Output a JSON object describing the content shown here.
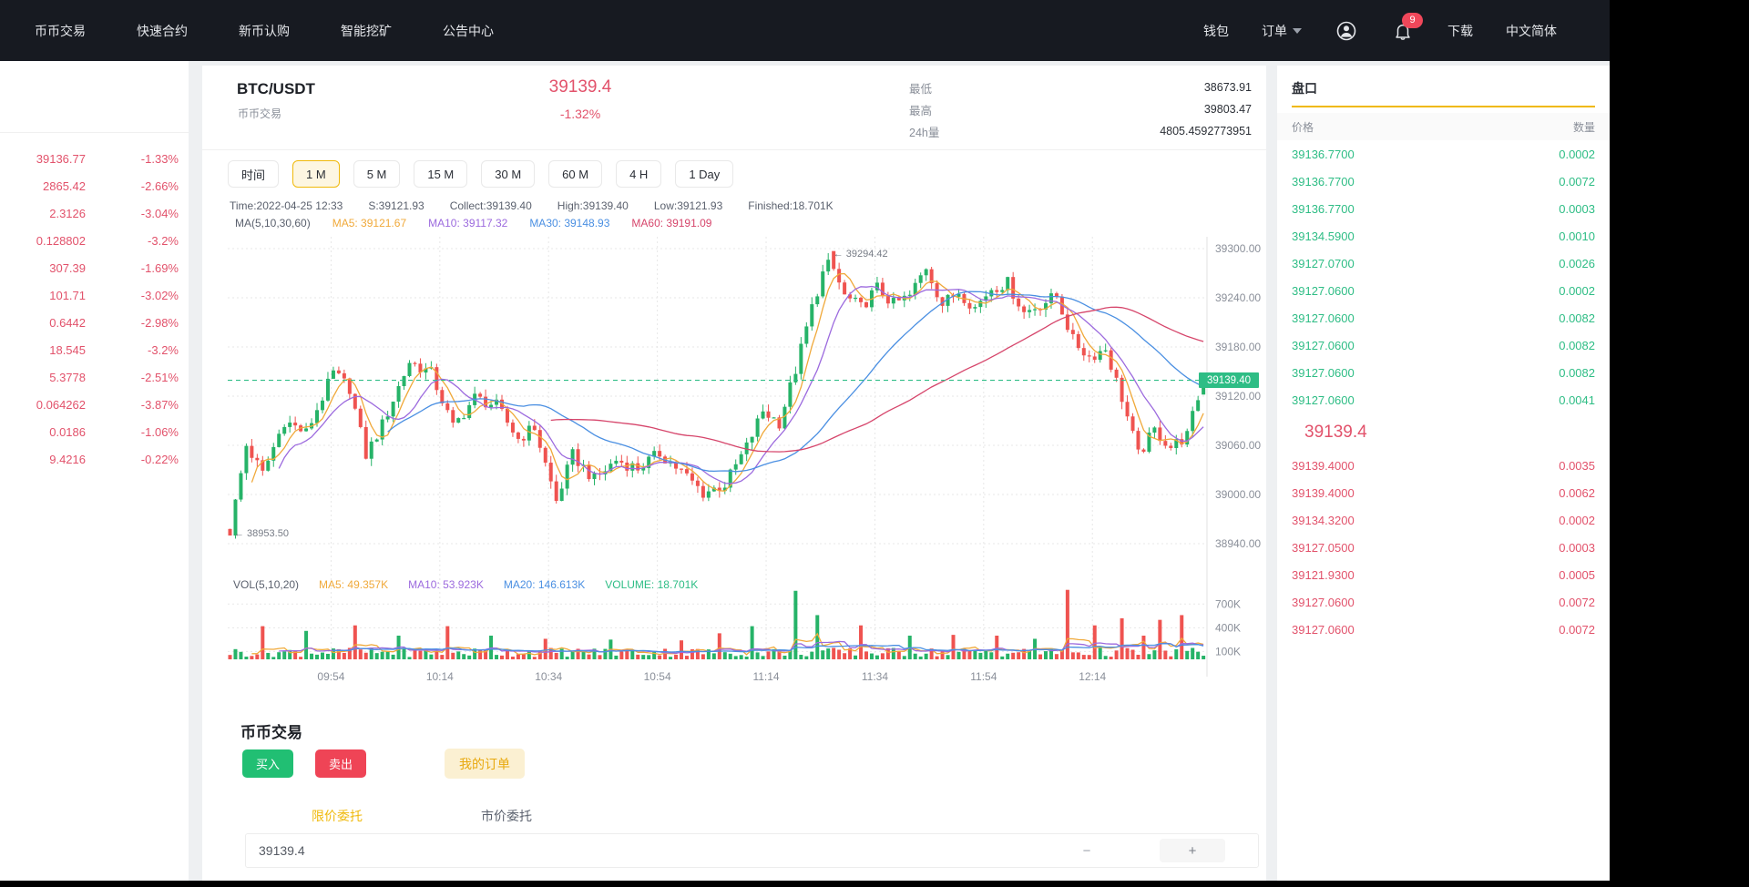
{
  "nav": {
    "items": [
      "币币交易",
      "快速合约",
      "新币认购",
      "智能挖矿",
      "公告中心"
    ],
    "right": {
      "wallet": "钱包",
      "orders": "订单",
      "download": "下载",
      "lang": "中文简体",
      "badge": "9"
    }
  },
  "watchlist": {
    "rows": [
      {
        "price": "39136.77",
        "change": "-1.33%"
      },
      {
        "price": "2865.42",
        "change": "-2.66%"
      },
      {
        "price": "2.3126",
        "change": "-3.04%"
      },
      {
        "price": "0.128802",
        "change": "-3.2%"
      },
      {
        "price": "307.39",
        "change": "-1.69%"
      },
      {
        "price": "101.71",
        "change": "-3.02%"
      },
      {
        "price": "0.6442",
        "change": "-2.98%"
      },
      {
        "price": "18.545",
        "change": "-3.2%"
      },
      {
        "price": "5.3778",
        "change": "-2.51%"
      },
      {
        "price": "0.064262",
        "change": "-3.87%"
      },
      {
        "price": "0.0186",
        "change": "-1.06%"
      },
      {
        "price": "9.4216",
        "change": "-0.22%"
      }
    ]
  },
  "header": {
    "symbol": "BTC/USDT",
    "subtitle": "币币交易",
    "price": "39139.4",
    "change": "-1.32%",
    "stats": [
      {
        "label": "最低",
        "value": "38673.91"
      },
      {
        "label": "最高",
        "value": "39803.47"
      },
      {
        "label": "24h量",
        "value": "4805.4592773951"
      }
    ]
  },
  "toolbar": {
    "label": "时间",
    "buttons": [
      "1 M",
      "5 M",
      "15 M",
      "30 M",
      "60 M",
      "4 H",
      "1 Day"
    ],
    "active": "1 M"
  },
  "chart_info": {
    "segments": [
      "Time:2022-04-25 12:33",
      "S:39121.93",
      "Collect:39139.40",
      "High:39139.40",
      "Low:39121.93",
      "Finished:18.701K"
    ],
    "ma_items": [
      {
        "label": "MA(5,10,30,60)",
        "color": "#5b616e"
      },
      {
        "label": "MA5: 39121.67",
        "color": "#f0a93a"
      },
      {
        "label": "MA10: 39117.32",
        "color": "#9c6ade"
      },
      {
        "label": "MA30: 39148.93",
        "color": "#4a8fe2"
      },
      {
        "label": "MA60: 39191.09",
        "color": "#d6456b"
      }
    ],
    "vol_items": [
      {
        "label": "VOL(5,10,20)",
        "color": "#5b616e"
      },
      {
        "label": "MA5: 49.357K",
        "color": "#f0a93a"
      },
      {
        "label": "MA10: 53.923K",
        "color": "#9c6ade"
      },
      {
        "label": "MA20: 146.613K",
        "color": "#4a8fe2"
      },
      {
        "label": "VOLUME: 18.701K",
        "color": "#2ebd85"
      }
    ]
  },
  "chart_data": {
    "type": "candlestick+volume",
    "symbol": "BTC/USDT",
    "interval": "1 M",
    "count": 180,
    "step": 5.97,
    "first_open": 38958,
    "price_anchors": [
      [
        0,
        38955
      ],
      [
        3,
        39060
      ],
      [
        6,
        39025
      ],
      [
        10,
        39090
      ],
      [
        14,
        39075
      ],
      [
        19,
        39148
      ],
      [
        22,
        39130
      ],
      [
        25,
        39048
      ],
      [
        28,
        39085
      ],
      [
        33,
        39162
      ],
      [
        37,
        39148
      ],
      [
        41,
        39082
      ],
      [
        45,
        39118
      ],
      [
        49,
        39108
      ],
      [
        53,
        39068
      ],
      [
        56,
        39082
      ],
      [
        60,
        38992
      ],
      [
        63,
        39048
      ],
      [
        67,
        39018
      ],
      [
        71,
        39042
      ],
      [
        75,
        39032
      ],
      [
        79,
        39050
      ],
      [
        83,
        39028
      ],
      [
        87,
        39002
      ],
      [
        91,
        39012
      ],
      [
        95,
        39058
      ],
      [
        98,
        39102
      ],
      [
        101,
        39088
      ],
      [
        104,
        39152
      ],
      [
        107,
        39228
      ],
      [
        110,
        39290
      ],
      [
        113,
        39242
      ],
      [
        116,
        39228
      ],
      [
        119,
        39252
      ],
      [
        122,
        39232
      ],
      [
        125,
        39242
      ],
      [
        128,
        39278
      ],
      [
        131,
        39232
      ],
      [
        134,
        39248
      ],
      [
        137,
        39228
      ],
      [
        140,
        39252
      ],
      [
        143,
        39258
      ],
      [
        146,
        39222
      ],
      [
        149,
        39232
      ],
      [
        152,
        39242
      ],
      [
        155,
        39188
      ],
      [
        158,
        39168
      ],
      [
        161,
        39178
      ],
      [
        164,
        39118
      ],
      [
        167,
        39048
      ],
      [
        170,
        39078
      ],
      [
        173,
        39058
      ],
      [
        176,
        39072
      ],
      [
        178,
        39118
      ],
      [
        179,
        39139.4
      ]
    ],
    "last_candle": {
      "open": 39121.93,
      "high": 39139.4,
      "low": 39121.93,
      "close": 39139.4,
      "label": "39139.40"
    },
    "max_annotation": {
      "index": 110,
      "price": 39294.42,
      "label": "← 39294.42"
    },
    "min_annotation": {
      "index": 0,
      "price": 38953.5,
      "label": "← 38953.50"
    },
    "price_axis": [
      39300,
      39240,
      39180,
      39120,
      39060,
      39000,
      38940
    ],
    "volume_axis": [
      {
        "v": 700,
        "label": "700K"
      },
      {
        "v": 400,
        "label": "400K"
      },
      {
        "v": 100,
        "label": "100K"
      }
    ],
    "x_ticks": [
      "09:54",
      "10:14",
      "10:34",
      "10:54",
      "11:14",
      "11:34",
      "11:54",
      "12:14"
    ],
    "volume_spikes": [
      [
        6,
        420
      ],
      [
        14,
        360
      ],
      [
        23,
        430
      ],
      [
        31,
        300
      ],
      [
        40,
        420
      ],
      [
        48,
        300
      ],
      [
        58,
        260
      ],
      [
        70,
        250
      ],
      [
        83,
        240
      ],
      [
        90,
        330
      ],
      [
        96,
        420
      ],
      [
        104,
        868
      ],
      [
        108,
        560
      ],
      [
        116,
        430
      ],
      [
        125,
        300
      ],
      [
        133,
        310
      ],
      [
        141,
        300
      ],
      [
        148,
        260
      ],
      [
        154,
        880
      ],
      [
        159,
        430
      ],
      [
        164,
        520
      ],
      [
        168,
        300
      ],
      [
        171,
        500
      ],
      [
        175,
        560
      ]
    ],
    "colors": {
      "up": "#26b368",
      "down": "#ef5350",
      "ma5": "#f0a93a",
      "ma10": "#9c6ade",
      "ma30": "#4a8fe2",
      "ma60": "#d6456b",
      "last": "#2ebd85",
      "axis_text": "#8a8f99",
      "grid": "#e7e7e7",
      "axis_line": "#e0e0e0",
      "annotation": "#767b85"
    }
  },
  "orderbook": {
    "title": "盘口",
    "col_price": "价格",
    "col_qty": "数量",
    "asks": [
      [
        "39136.7700",
        "0.0002"
      ],
      [
        "39136.7700",
        "0.0072"
      ],
      [
        "39136.7700",
        "0.0003"
      ],
      [
        "39134.5900",
        "0.0010"
      ],
      [
        "39127.0700",
        "0.0026"
      ],
      [
        "39127.0600",
        "0.0002"
      ],
      [
        "39127.0600",
        "0.0082"
      ],
      [
        "39127.0600",
        "0.0082"
      ],
      [
        "39127.0600",
        "0.0082"
      ],
      [
        "39127.0600",
        "0.0041"
      ]
    ],
    "last_price": "39139.4",
    "bids": [
      [
        "39139.4000",
        "0.0035"
      ],
      [
        "39139.4000",
        "0.0062"
      ],
      [
        "39134.3200",
        "0.0002"
      ],
      [
        "39127.0500",
        "0.0003"
      ],
      [
        "39121.9300",
        "0.0005"
      ],
      [
        "39127.0600",
        "0.0072"
      ],
      [
        "39127.0600",
        "0.0072"
      ]
    ]
  },
  "trade": {
    "title": "币币交易",
    "buy_label": "买入",
    "sell_label": "卖出",
    "my_orders_label": "我的订单",
    "tab_limit": "限价委托",
    "tab_market": "市价委托",
    "price_value": "39139.4",
    "minus": "−",
    "plus": "+"
  }
}
